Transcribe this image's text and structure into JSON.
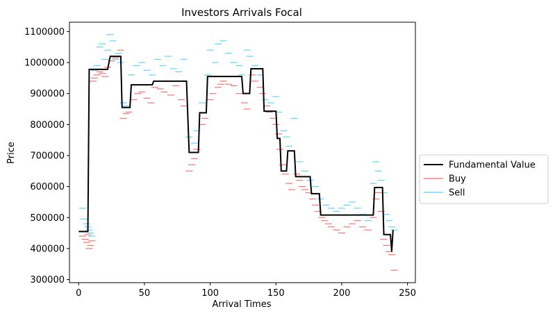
{
  "chart_data": {
    "type": "line",
    "title": "Investors Arrivals Focal",
    "xlabel": "Arrival Times",
    "ylabel": "Price",
    "xlim": [
      -7,
      256
    ],
    "ylim": [
      290000,
      1130000
    ],
    "xticks": [
      0,
      50,
      100,
      150,
      200,
      250
    ],
    "yticks": [
      300000,
      400000,
      500000,
      600000,
      700000,
      800000,
      900000,
      1000000,
      1100000
    ],
    "xtick_labels": [
      "0",
      "50",
      "100",
      "150",
      "200",
      "250"
    ],
    "ytick_labels": [
      "300000",
      "400000",
      "500000",
      "600000",
      "700000",
      "800000",
      "900000",
      "1000000",
      "1100000"
    ],
    "grid": false,
    "legend_position": "outside-right",
    "legend": [
      {
        "label": "Fundamental Value",
        "color": "#000000"
      },
      {
        "label": "Buy",
        "color": "#ff4d4d"
      },
      {
        "label": "Sell",
        "color": "#33ccff"
      }
    ],
    "series": [
      {
        "name": "Fundamental Value",
        "style": "step",
        "color": "#000000",
        "x": [
          0,
          7,
          8,
          22,
          24,
          32,
          33,
          39,
          40,
          56,
          57,
          82,
          84,
          91,
          92,
          97,
          98,
          124,
          125,
          130,
          131,
          140,
          141,
          150,
          151,
          153,
          154,
          158,
          159,
          164,
          165,
          176,
          177,
          183,
          184,
          224,
          225,
          231,
          232,
          237,
          238,
          239
        ],
        "y": [
          455000,
          455000,
          978000,
          978000,
          1020000,
          1020000,
          855000,
          855000,
          928000,
          928000,
          940000,
          940000,
          710000,
          710000,
          838000,
          838000,
          955000,
          955000,
          900000,
          900000,
          980000,
          980000,
          843000,
          843000,
          755000,
          755000,
          650000,
          650000,
          715000,
          715000,
          632000,
          632000,
          577000,
          577000,
          508000,
          508000,
          597000,
          597000,
          445000,
          445000,
          390000,
          460000
        ]
      },
      {
        "name": "Buy",
        "style": "dash-marker",
        "color": "#ff4d4d",
        "x": [
          3,
          5,
          6,
          7,
          8,
          9,
          10,
          11,
          12,
          14,
          16,
          18,
          20,
          22,
          25,
          28,
          32,
          34,
          36,
          38,
          42,
          45,
          48,
          52,
          55,
          58,
          62,
          65,
          70,
          74,
          78,
          80,
          84,
          86,
          88,
          90,
          94,
          96,
          100,
          102,
          106,
          108,
          110,
          114,
          118,
          122,
          126,
          128,
          132,
          134,
          138,
          140,
          143,
          145,
          148,
          150,
          152,
          153,
          155,
          157,
          160,
          162,
          166,
          168,
          170,
          172,
          175,
          178,
          180,
          182,
          185,
          187,
          190,
          192,
          196,
          200,
          204,
          208,
          212,
          216,
          220,
          224,
          226,
          228,
          230,
          232,
          234,
          236,
          238,
          240
        ],
        "y": [
          440000,
          430000,
          420000,
          445000,
          400000,
          410000,
          425000,
          940000,
          950000,
          960000,
          970000,
          965000,
          955000,
          985000,
          1005000,
          1015000,
          1040000,
          820000,
          835000,
          840000,
          880000,
          900000,
          905000,
          885000,
          870000,
          920000,
          915000,
          905000,
          895000,
          925000,
          880000,
          860000,
          650000,
          670000,
          690000,
          720000,
          800000,
          820000,
          880000,
          900000,
          920000,
          930000,
          940000,
          930000,
          925000,
          900000,
          870000,
          850000,
          960000,
          940000,
          920000,
          900000,
          860000,
          840000,
          820000,
          800000,
          770000,
          720000,
          670000,
          640000,
          610000,
          590000,
          640000,
          620000,
          600000,
          590000,
          580000,
          560000,
          540000,
          520000,
          500000,
          490000,
          480000,
          470000,
          460000,
          450000,
          470000,
          480000,
          490000,
          470000,
          460000,
          500000,
          560000,
          580000,
          520000,
          430000,
          410000,
          390000,
          380000,
          330000
        ]
      },
      {
        "name": "Sell",
        "style": "dash-marker",
        "color": "#33ccff",
        "x": [
          3,
          4,
          6,
          7,
          8,
          9,
          10,
          12,
          14,
          16,
          18,
          20,
          22,
          24,
          26,
          28,
          30,
          32,
          34,
          36,
          40,
          44,
          48,
          52,
          56,
          60,
          64,
          68,
          72,
          76,
          80,
          84,
          88,
          90,
          94,
          98,
          100,
          104,
          106,
          110,
          114,
          118,
          122,
          124,
          128,
          130,
          134,
          138,
          142,
          146,
          150,
          152,
          156,
          158,
          160,
          164,
          168,
          172,
          176,
          180,
          184,
          188,
          192,
          196,
          200,
          204,
          208,
          212,
          216,
          220,
          224,
          226,
          228,
          230,
          232,
          234,
          236,
          238,
          240
        ],
        "y": [
          530000,
          495000,
          480000,
          470000,
          460000,
          450000,
          440000,
          975000,
          990000,
          1050000,
          1060000,
          1010000,
          1040000,
          1090000,
          1070000,
          1010000,
          1030000,
          1000000,
          870000,
          860000,
          960000,
          990000,
          1000000,
          975000,
          960000,
          1010000,
          990000,
          1020000,
          980000,
          970000,
          1010000,
          760000,
          740000,
          780000,
          870000,
          960000,
          1040000,
          1000000,
          1060000,
          1070000,
          1030000,
          1000000,
          990000,
          960000,
          1040000,
          1020000,
          990000,
          960000,
          880000,
          870000,
          890000,
          840000,
          780000,
          760000,
          730000,
          820000,
          680000,
          650000,
          620000,
          600000,
          560000,
          540000,
          530000,
          520000,
          530000,
          540000,
          550000,
          530000,
          510000,
          490000,
          610000,
          680000,
          650000,
          620000,
          580000,
          510000,
          490000,
          470000,
          460000
        ]
      }
    ]
  }
}
